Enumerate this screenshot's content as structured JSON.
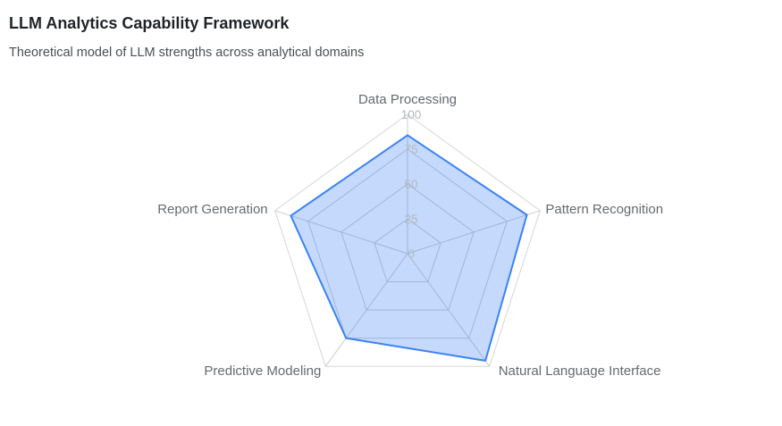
{
  "header": {
    "title": "LLM Analytics Capability Framework",
    "subtitle": "Theoretical model of LLM strengths across analytical domains"
  },
  "chart_data": {
    "type": "radar",
    "title": "LLM Analytics Capability Framework",
    "subtitle": "Theoretical model of LLM strengths across analytical domains",
    "categories": [
      "Data Processing",
      "Pattern Recognition",
      "Natural Language Interface",
      "Predictive Modeling",
      "Report Generation"
    ],
    "series": [
      {
        "values": [
          85,
          90,
          95,
          75,
          88
        ]
      }
    ],
    "r_range": [
      0,
      100
    ],
    "r_ticks": [
      "0",
      "25",
      "50",
      "75",
      "100"
    ],
    "grid": true,
    "legend": "none",
    "colors": {
      "line": "#3b82f6",
      "fill": "#3b82f6",
      "grid": "#cccccc",
      "grid_outer": "#d6d6d6"
    }
  }
}
